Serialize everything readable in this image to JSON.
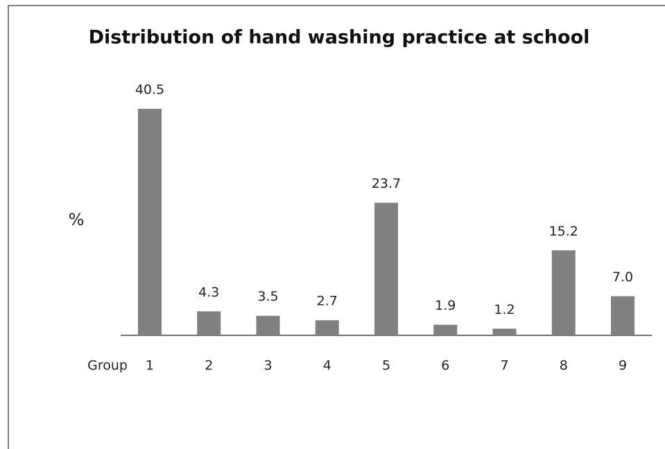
{
  "chart_data": {
    "type": "bar",
    "title": "Distribution of hand washing practice at school",
    "x_label": "Group",
    "y_label": "%",
    "categories": [
      "1",
      "2",
      "3",
      "4",
      "5",
      "6",
      "7",
      "8",
      "9"
    ],
    "values": [
      40.5,
      4.3,
      3.5,
      2.7,
      23.7,
      1.9,
      1.2,
      15.2,
      7.0
    ],
    "value_labels": [
      "40.5",
      "4.3",
      "3.5",
      "2.7",
      "23.7",
      "1.9",
      "1.2",
      "15.2",
      "7.0"
    ],
    "color": "#808080"
  }
}
